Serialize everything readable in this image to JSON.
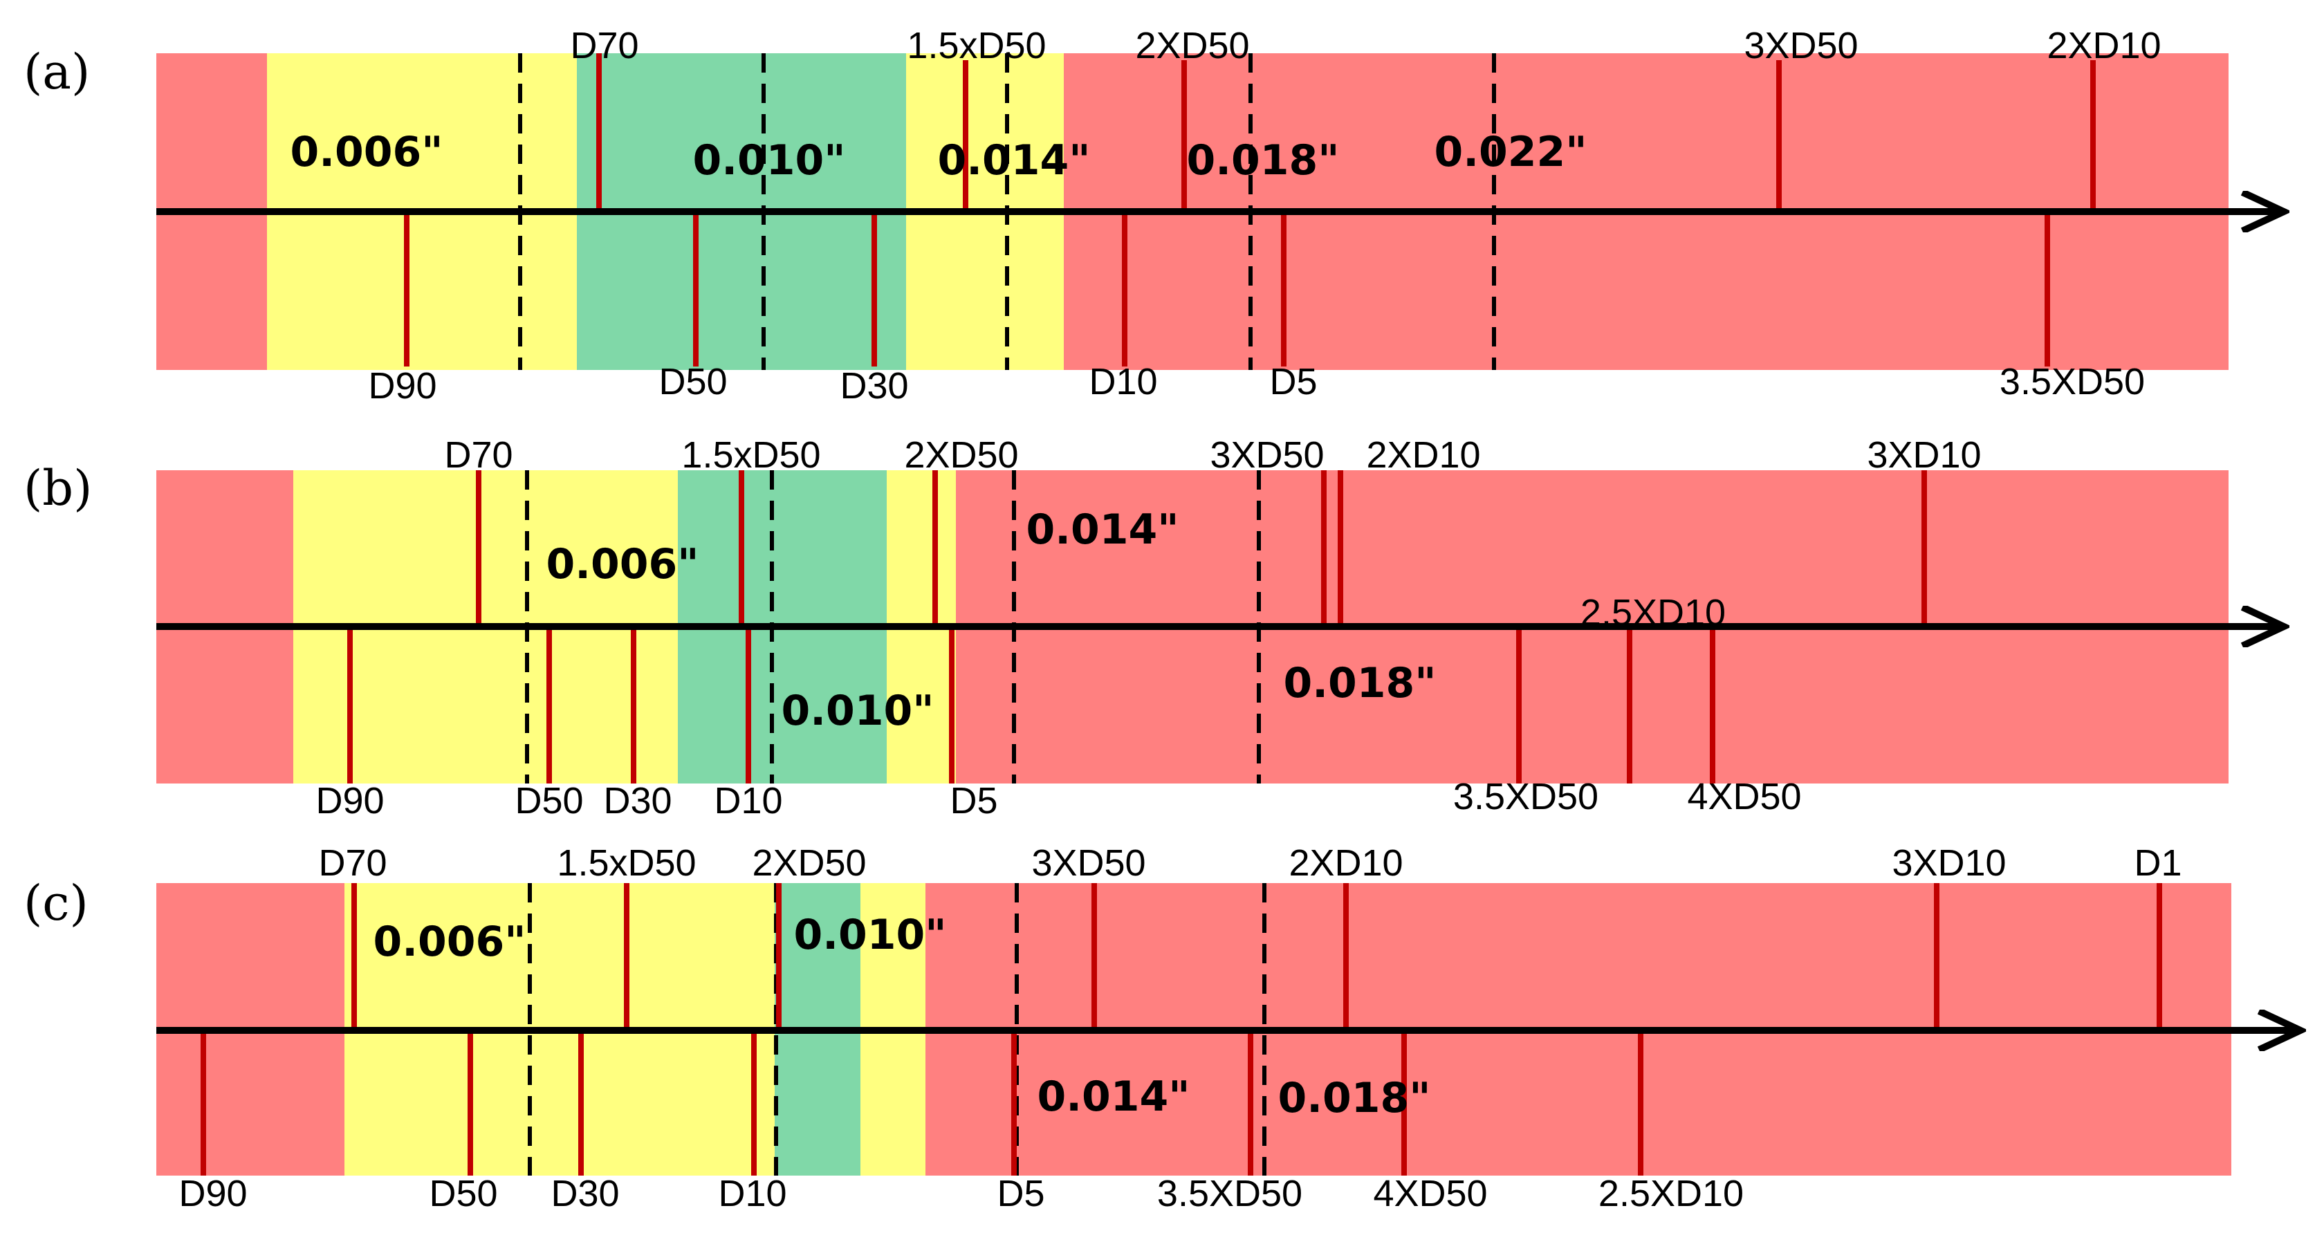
{
  "colors": {
    "red_zone": "#ff8080",
    "yellow_zone": "#ffff80",
    "green_zone": "#80d8a8",
    "marker": "#c00000",
    "axis": "#000000",
    "divider": "#000000"
  },
  "panels": [
    {
      "id": "a",
      "label": "(a)",
      "zones": [
        {
          "type": "red"
        },
        {
          "type": "yellow"
        },
        {
          "type": "green"
        },
        {
          "type": "yellow"
        },
        {
          "type": "red"
        }
      ],
      "dividers": [
        {
          "id": "a-div-1"
        },
        {
          "id": "a-div-2"
        },
        {
          "id": "a-div-3"
        },
        {
          "id": "a-div-4"
        },
        {
          "id": "a-div-5"
        }
      ],
      "slot_labels": [
        "0.006\"",
        "0.010\"",
        "0.014\"",
        "0.018\"",
        "0.022\""
      ],
      "upper_markers": [
        "D70",
        "1.5xD50",
        "2XD50",
        "3XD50",
        "2XD10"
      ],
      "lower_markers": [
        "D90",
        "D50",
        "D30",
        "D10",
        "D5",
        "3.5XD50"
      ]
    },
    {
      "id": "b",
      "label": "(b)",
      "zones": [
        {
          "type": "red"
        },
        {
          "type": "yellow"
        },
        {
          "type": "green"
        },
        {
          "type": "yellow"
        },
        {
          "type": "red"
        }
      ],
      "dividers": [
        {
          "id": "b-div-1"
        },
        {
          "id": "b-div-2"
        },
        {
          "id": "b-div-3"
        },
        {
          "id": "b-div-4"
        }
      ],
      "slot_labels": [
        "0.006\"",
        "0.010\"",
        "0.014\"",
        "0.018\""
      ],
      "upper_markers": [
        "D70",
        "1.5xD50",
        "2XD50",
        "3XD50",
        "2XD10",
        "3XD10"
      ],
      "lower_markers": [
        "D90",
        "D50",
        "D30",
        "D10",
        "D5",
        "3.5XD50",
        "2.5XD10",
        "4XD50"
      ]
    },
    {
      "id": "c",
      "label": "(c)",
      "zones": [
        {
          "type": "red"
        },
        {
          "type": "yellow"
        },
        {
          "type": "green"
        },
        {
          "type": "yellow"
        },
        {
          "type": "red"
        }
      ],
      "dividers": [
        {
          "id": "c-div-1"
        },
        {
          "id": "c-div-2"
        },
        {
          "id": "c-div-3"
        },
        {
          "id": "c-div-4"
        }
      ],
      "slot_labels": [
        "0.006\"",
        "0.010\"",
        "0.014\"",
        "0.018\""
      ],
      "upper_markers": [
        "D70",
        "1.5xD50",
        "2XD50",
        "3XD50",
        "2XD10",
        "3XD10",
        "D1"
      ],
      "lower_markers": [
        "D90",
        "D50",
        "D30",
        "D10",
        "D5",
        "3.5XD50",
        "4XD50",
        "2.5XD10"
      ]
    }
  ]
}
